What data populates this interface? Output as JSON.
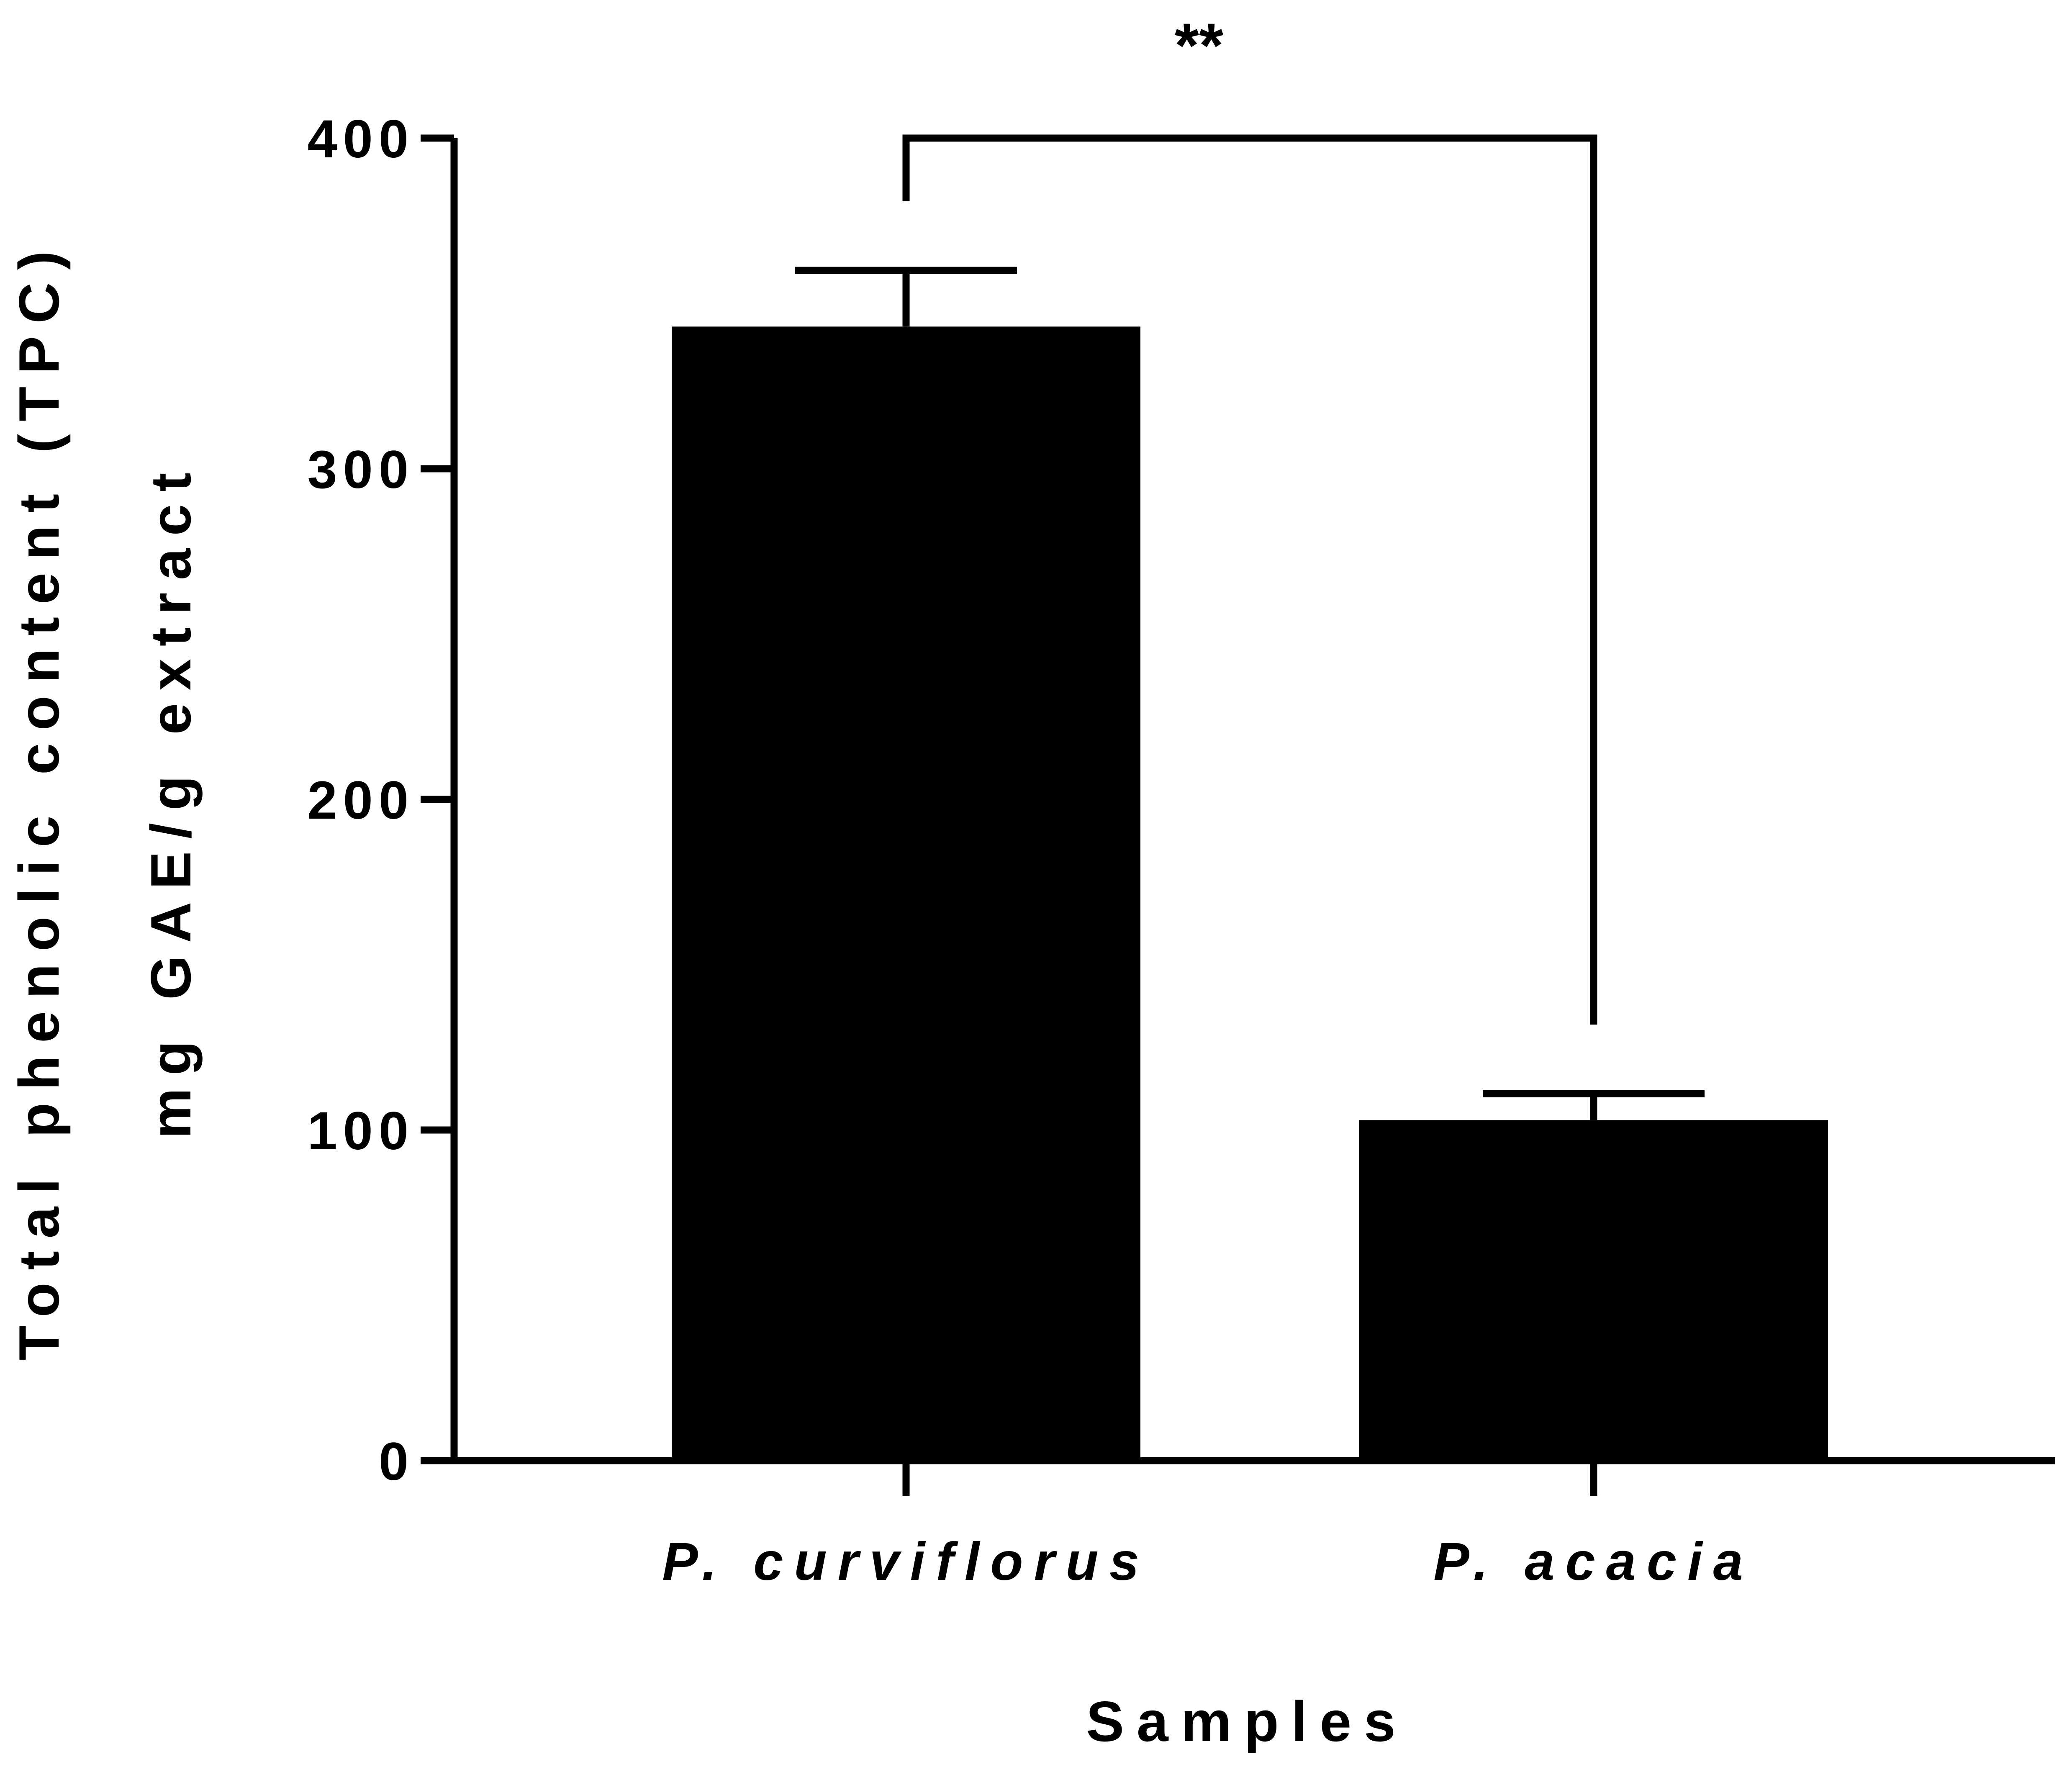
{
  "chart_data": {
    "type": "bar",
    "categories": [
      "P. curviflorus",
      "P. acacia"
    ],
    "values": [
      343,
      103
    ],
    "errors": [
      17,
      8
    ],
    "xlabel": "Samples",
    "ylabel_lines": [
      "Total phenolic content (TPC)",
      "mg GAE/g extract"
    ],
    "ylim": [
      0,
      400
    ],
    "yticks": [
      0,
      100,
      200,
      300,
      400
    ],
    "grid": false,
    "legend": "none",
    "bar_color": "#000000",
    "significance": {
      "label": "**",
      "between": [
        0,
        1
      ]
    }
  }
}
